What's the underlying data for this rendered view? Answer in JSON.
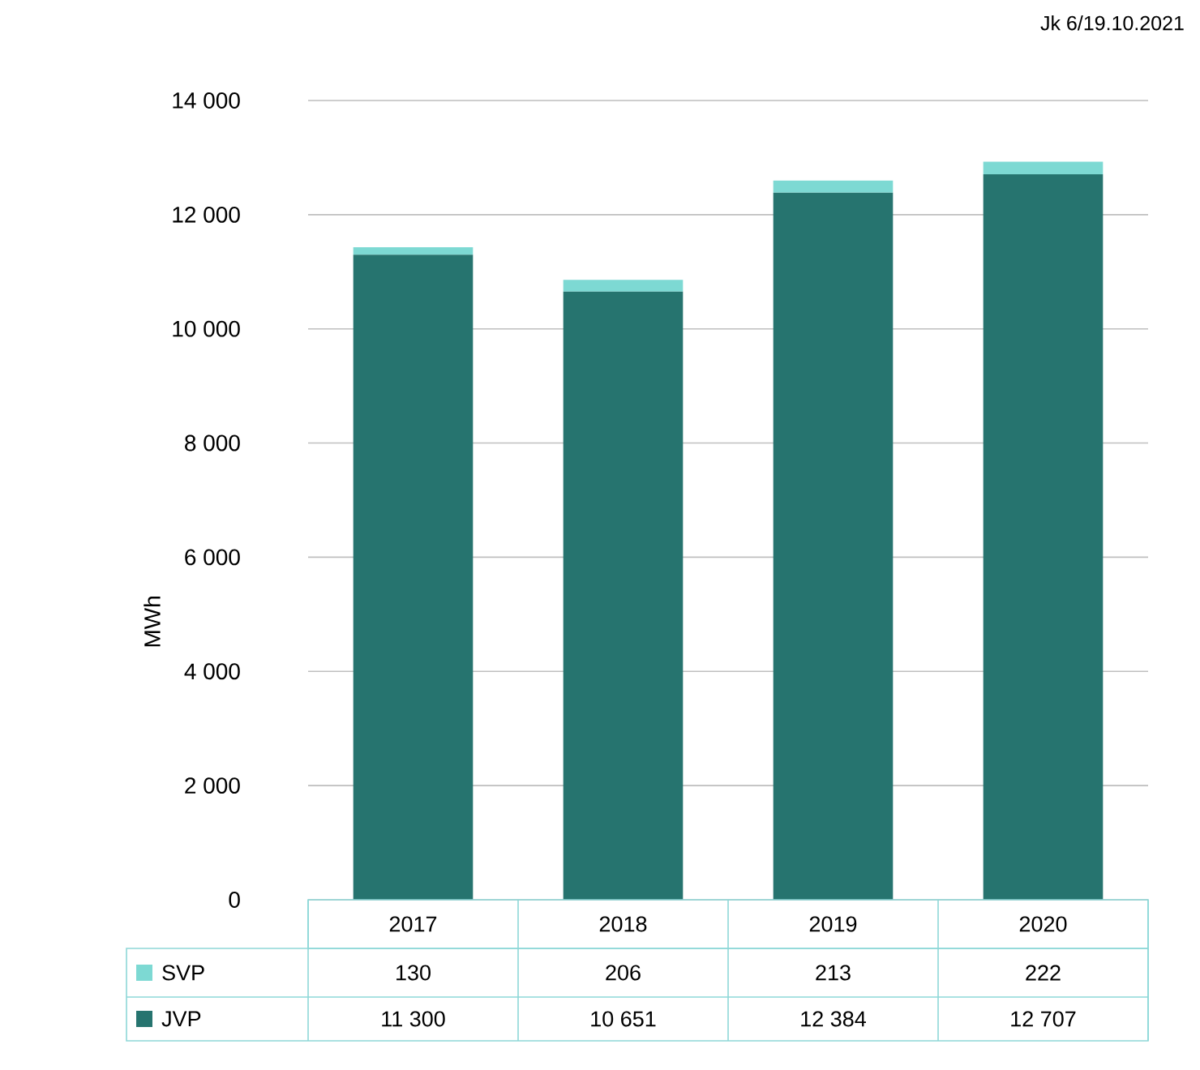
{
  "chart_data": {
    "type": "bar",
    "stacked": true,
    "ylabel": "MWh",
    "categories": [
      "2017",
      "2018",
      "2019",
      "2020"
    ],
    "series": [
      {
        "name": "JVP",
        "color": "#26746f",
        "values": [
          11300,
          10651,
          12384,
          12707
        ],
        "value_labels": [
          "11 300",
          "10 651",
          "12 384",
          "12 707"
        ]
      },
      {
        "name": "SVP",
        "color": "#7dd9d3",
        "values": [
          130,
          206,
          213,
          222
        ],
        "value_labels": [
          "130",
          "206",
          "213",
          "222"
        ]
      }
    ],
    "ylim": [
      0,
      14000
    ],
    "yticks": [
      0,
      {
        "value": 2000,
        "label": "2 000"
      },
      {
        "value": 4000,
        "label": "4 000"
      },
      {
        "value": 6000,
        "label": "6 000"
      },
      {
        "value": 8000,
        "label": "8 000"
      },
      {
        "value": 10000,
        "label": "10 000"
      },
      {
        "value": 12000,
        "label": "12 000"
      },
      {
        "value": 14000,
        "label": "14 000"
      }
    ],
    "grid": "y",
    "legend": "bottom",
    "annotations": [
      "Jk 6/19.10.2021"
    ]
  }
}
